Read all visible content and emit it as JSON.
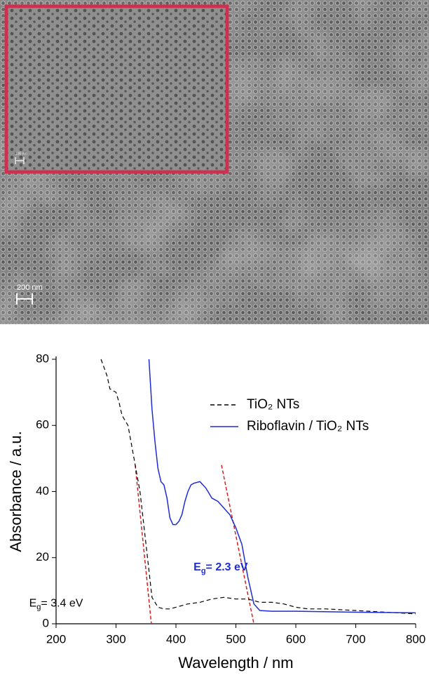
{
  "micrograph": {
    "scale_bar": "200 nm",
    "inset_scale_bar": "100 nm",
    "inset_border_color": "#d0304f"
  },
  "chart_data": {
    "type": "line",
    "x_label": "Wavelength / nm",
    "y_label": "Absorbance / a.u.",
    "xlim": [
      200,
      800
    ],
    "ylim": [
      0,
      80
    ],
    "xticks": [
      200,
      300,
      400,
      500,
      600,
      700,
      800
    ],
    "yticks": [
      0,
      20,
      40,
      60,
      80
    ],
    "legend": "upper right",
    "series": [
      {
        "name": "TiO₂ NTs",
        "color": "#000000",
        "dash": true,
        "x": [
          275,
          285,
          290,
          300,
          305,
          310,
          320,
          330,
          340,
          350,
          360,
          370,
          380,
          390,
          400,
          420,
          440,
          460,
          480,
          500,
          520,
          540,
          560,
          580,
          600,
          620,
          650,
          700,
          750,
          800
        ],
        "values": [
          80,
          75,
          71,
          70,
          67,
          63,
          60,
          50,
          40,
          24,
          8,
          5,
          4.5,
          4.5,
          5,
          6,
          6.5,
          7.5,
          8,
          7.5,
          7.5,
          6.5,
          6.5,
          6,
          5,
          4.5,
          4.5,
          4,
          3.5,
          3
        ]
      },
      {
        "name": "Riboflavin / TiO₂ NTs",
        "color": "#1f2bd6",
        "dash": false,
        "x": [
          355,
          360,
          365,
          370,
          375,
          380,
          385,
          390,
          395,
          400,
          405,
          410,
          415,
          420,
          425,
          430,
          440,
          450,
          460,
          470,
          480,
          490,
          500,
          510,
          520,
          530,
          540,
          560,
          600,
          700,
          800
        ],
        "values": [
          80,
          65,
          55,
          47,
          43,
          42,
          38,
          32,
          30,
          30,
          31,
          33,
          37,
          40,
          42,
          42.5,
          43,
          41,
          38,
          37,
          35,
          33,
          29,
          24,
          14,
          6,
          4,
          3.8,
          3.8,
          3.5,
          3.3
        ]
      }
    ],
    "tangent_lines": {
      "color": "#d42020",
      "lines": [
        {
          "x": [
            332,
            359
          ],
          "y": [
            48,
            0
          ]
        },
        {
          "x": [
            476,
            530
          ],
          "y": [
            48,
            0
          ]
        }
      ]
    },
    "annotations": [
      {
        "main": "E",
        "sub": "g",
        "rest": "= 3.4 eV",
        "x": 245,
        "y": 6,
        "color": "#000000",
        "bold": false
      },
      {
        "main": "E",
        "sub": "g",
        "rest": "= 2.3 eV",
        "x": 520,
        "y": 17,
        "color": "#1f2bd6",
        "bold": true
      }
    ]
  }
}
